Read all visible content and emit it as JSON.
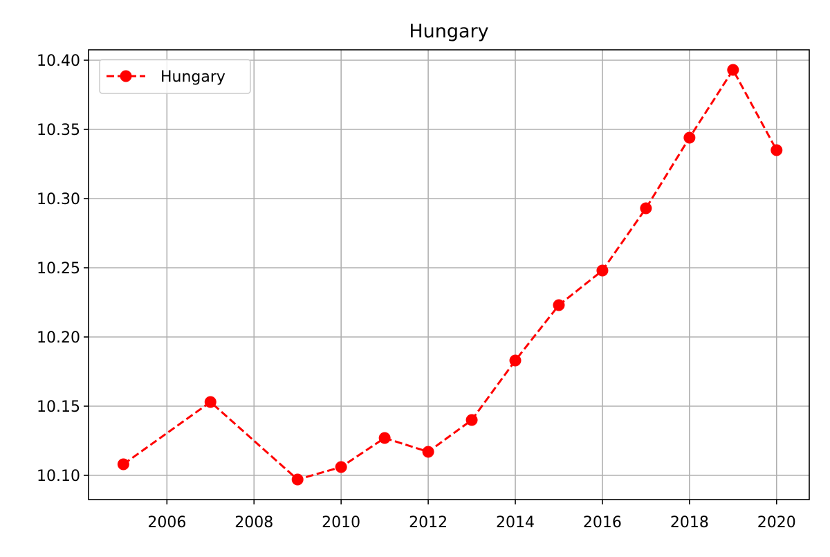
{
  "chart_data": {
    "type": "line",
    "title": "Hungary",
    "xlabel": "",
    "ylabel": "",
    "x": [
      2005,
      2007,
      2009,
      2010,
      2011,
      2012,
      2013,
      2014,
      2015,
      2016,
      2017,
      2018,
      2019,
      2020
    ],
    "series": [
      {
        "name": "Hungary",
        "values": [
          10.108,
          10.153,
          10.097,
          10.106,
          10.127,
          10.117,
          10.14,
          10.183,
          10.223,
          10.248,
          10.293,
          10.344,
          10.393,
          10.335
        ],
        "color": "#ff0000",
        "line_style": "dashed",
        "marker": "circle"
      }
    ],
    "xlim": [
      2004.2,
      2020.75
    ],
    "ylim": [
      10.0825,
      10.4075
    ],
    "xticks": [
      2006,
      2008,
      2010,
      2012,
      2014,
      2016,
      2018,
      2020
    ],
    "xtick_labels": [
      "2006",
      "2008",
      "2010",
      "2012",
      "2014",
      "2016",
      "2018",
      "2020"
    ],
    "yticks": [
      10.1,
      10.15,
      10.2,
      10.25,
      10.3,
      10.35,
      10.4
    ],
    "ytick_labels": [
      "10.10",
      "10.15",
      "10.20",
      "10.25",
      "10.30",
      "10.35",
      "10.40"
    ],
    "grid": true,
    "legend_position": "top-left"
  }
}
